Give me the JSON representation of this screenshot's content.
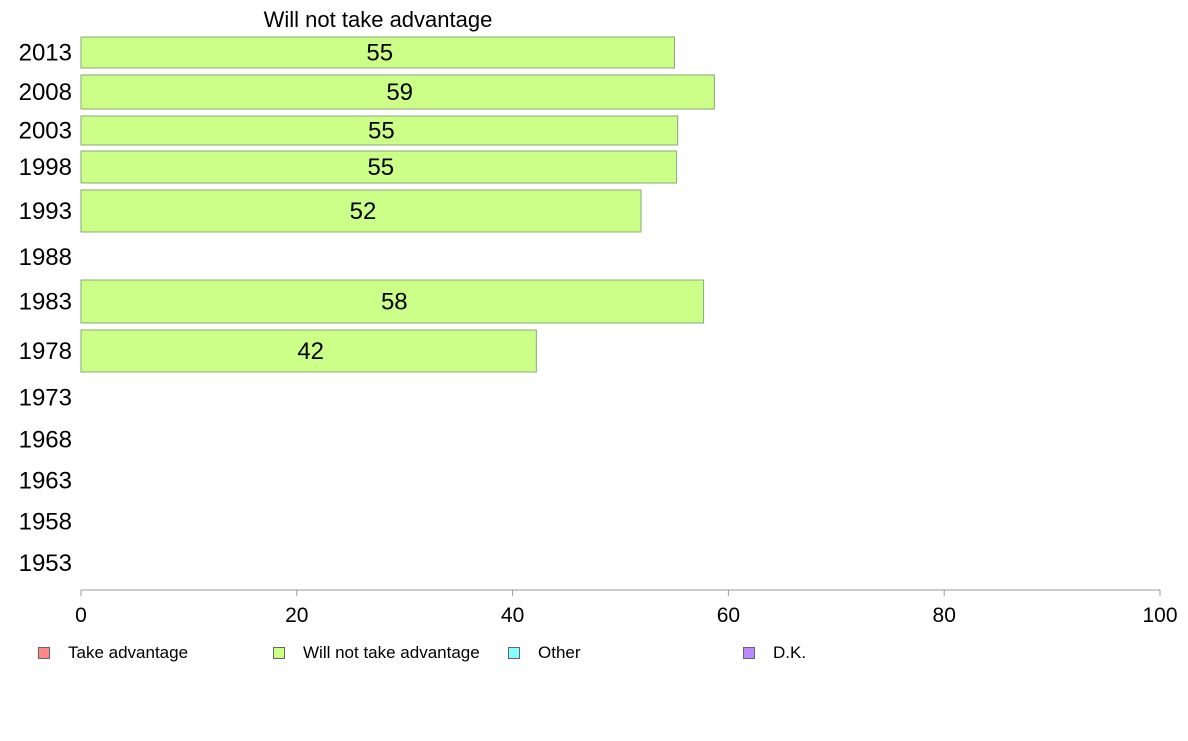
{
  "chart_data": {
    "type": "bar",
    "orientation": "horizontal",
    "title": "Will not take advantage",
    "xlabel": "",
    "ylabel": "",
    "xlim": [
      0,
      100
    ],
    "x_ticks": [
      0,
      20,
      40,
      60,
      80,
      100
    ],
    "categories": [
      "2013",
      "2008",
      "2003",
      "1998",
      "1993",
      "1988",
      "1983",
      "1978",
      "1973",
      "1968",
      "1963",
      "1958",
      "1953"
    ],
    "series": [
      {
        "name": "Will not take advantage",
        "color": "#ccff88",
        "values": [
          55,
          58.7,
          55.3,
          55.2,
          51.9,
          null,
          57.7,
          42.2,
          null,
          null,
          null,
          null,
          null
        ],
        "labels": [
          "55",
          "59",
          "55",
          "55",
          "52",
          "",
          "58",
          "42",
          "",
          "",
          "",
          "",
          ""
        ]
      }
    ],
    "grid": false,
    "legend_position": "bottom",
    "legend": [
      {
        "label": "Take advantage",
        "color": "#ff8888"
      },
      {
        "label": "Will not take advantage",
        "color": "#ccff88"
      },
      {
        "label": "Other",
        "color": "#88ffff"
      },
      {
        "label": "D.K.",
        "color": "#bb88ff"
      }
    ]
  }
}
